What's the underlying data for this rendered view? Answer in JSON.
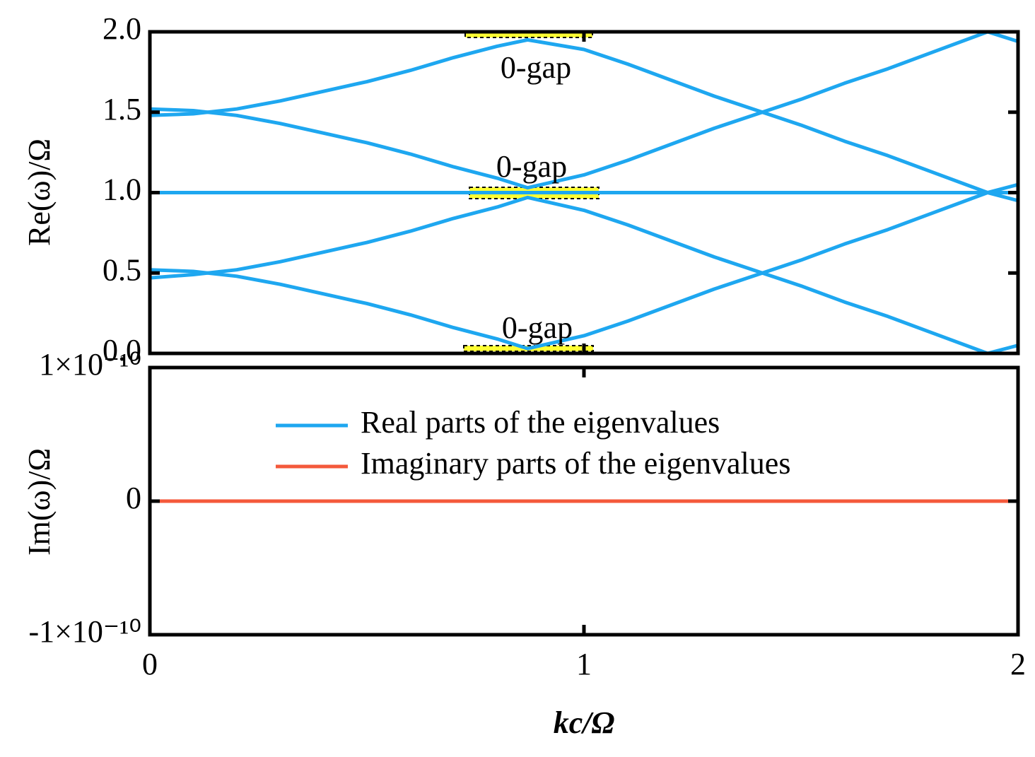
{
  "chart_data": [
    {
      "type": "line",
      "ylabel": "Re(ω)/Ω",
      "x": [
        0,
        0.1,
        0.2,
        0.3,
        0.4,
        0.5,
        0.6,
        0.7,
        0.8,
        0.87,
        1.0,
        1.1,
        1.2,
        1.3,
        1.4,
        1.5,
        1.6,
        1.7,
        1.8,
        1.93,
        2.0
      ],
      "series": [
        {
          "color": "#1ea7f0",
          "values": [
            1.48,
            1.49,
            1.52,
            1.57,
            1.63,
            1.69,
            1.76,
            1.84,
            1.91,
            1.95,
            1.89,
            1.8,
            1.7,
            1.6,
            1.51,
            1.42,
            1.32,
            1.23,
            1.13,
            1.0,
            0.95
          ]
        },
        {
          "color": "#1ea7f0",
          "values": [
            1.52,
            1.51,
            1.48,
            1.43,
            1.37,
            1.31,
            1.24,
            1.16,
            1.09,
            1.03,
            1.11,
            1.2,
            1.3,
            1.4,
            1.49,
            1.58,
            1.68,
            1.77,
            1.87,
            2.0,
            1.94
          ]
        },
        {
          "color": "#1ea7f0",
          "values": [
            1,
            1,
            1,
            1,
            1,
            1,
            1,
            1,
            1,
            1,
            1,
            1,
            1,
            1,
            1,
            1,
            1,
            1,
            1,
            1,
            1
          ]
        },
        {
          "color": "#1ea7f0",
          "values": [
            0.47,
            0.49,
            0.52,
            0.57,
            0.63,
            0.69,
            0.76,
            0.84,
            0.91,
            0.97,
            0.89,
            0.8,
            0.7,
            0.6,
            0.51,
            0.42,
            0.32,
            0.23,
            0.13,
            0.0,
            0.05
          ]
        },
        {
          "color": "#1ea7f0",
          "values": [
            0.52,
            0.51,
            0.48,
            0.43,
            0.37,
            0.31,
            0.24,
            0.16,
            0.09,
            0.03,
            0.11,
            0.2,
            0.3,
            0.4,
            0.49,
            0.58,
            0.68,
            0.77,
            0.87,
            1.0,
            1.05
          ]
        }
      ],
      "annotations": [
        "0-gap",
        "0-gap",
        "0-gap"
      ],
      "xlim": [
        0,
        2
      ],
      "xticks": [
        0,
        1,
        2
      ],
      "ylim": [
        0,
        2
      ],
      "yticks": [
        {
          "value": 0,
          "label": "0.0"
        },
        0.5,
        {
          "value": 1,
          "label": "1.0"
        },
        1.5,
        {
          "value": 2,
          "label": "2.0"
        }
      ]
    },
    {
      "type": "line",
      "ylabel": "Im(ω)/Ω",
      "xlabel": "kc/Ω",
      "x": [
        0,
        2
      ],
      "series": [
        {
          "color": "#f4593b",
          "values": [
            0,
            0
          ]
        }
      ],
      "legend": [
        {
          "name": "Real parts of the eigenvalues",
          "color": "#1ea7f0"
        },
        {
          "name": "Imaginary parts of the eigenvalues",
          "color": "#f4593b"
        }
      ],
      "xlim": [
        0,
        2
      ],
      "xticks": [
        0,
        1,
        2
      ],
      "ylim": [
        -1e-10,
        1e-10
      ],
      "yticks": [
        {
          "value": -1e-10,
          "label": "-1×10⁻¹⁰"
        },
        0,
        {
          "value": 1e-10,
          "label": "1×10⁻¹⁰"
        }
      ]
    }
  ]
}
